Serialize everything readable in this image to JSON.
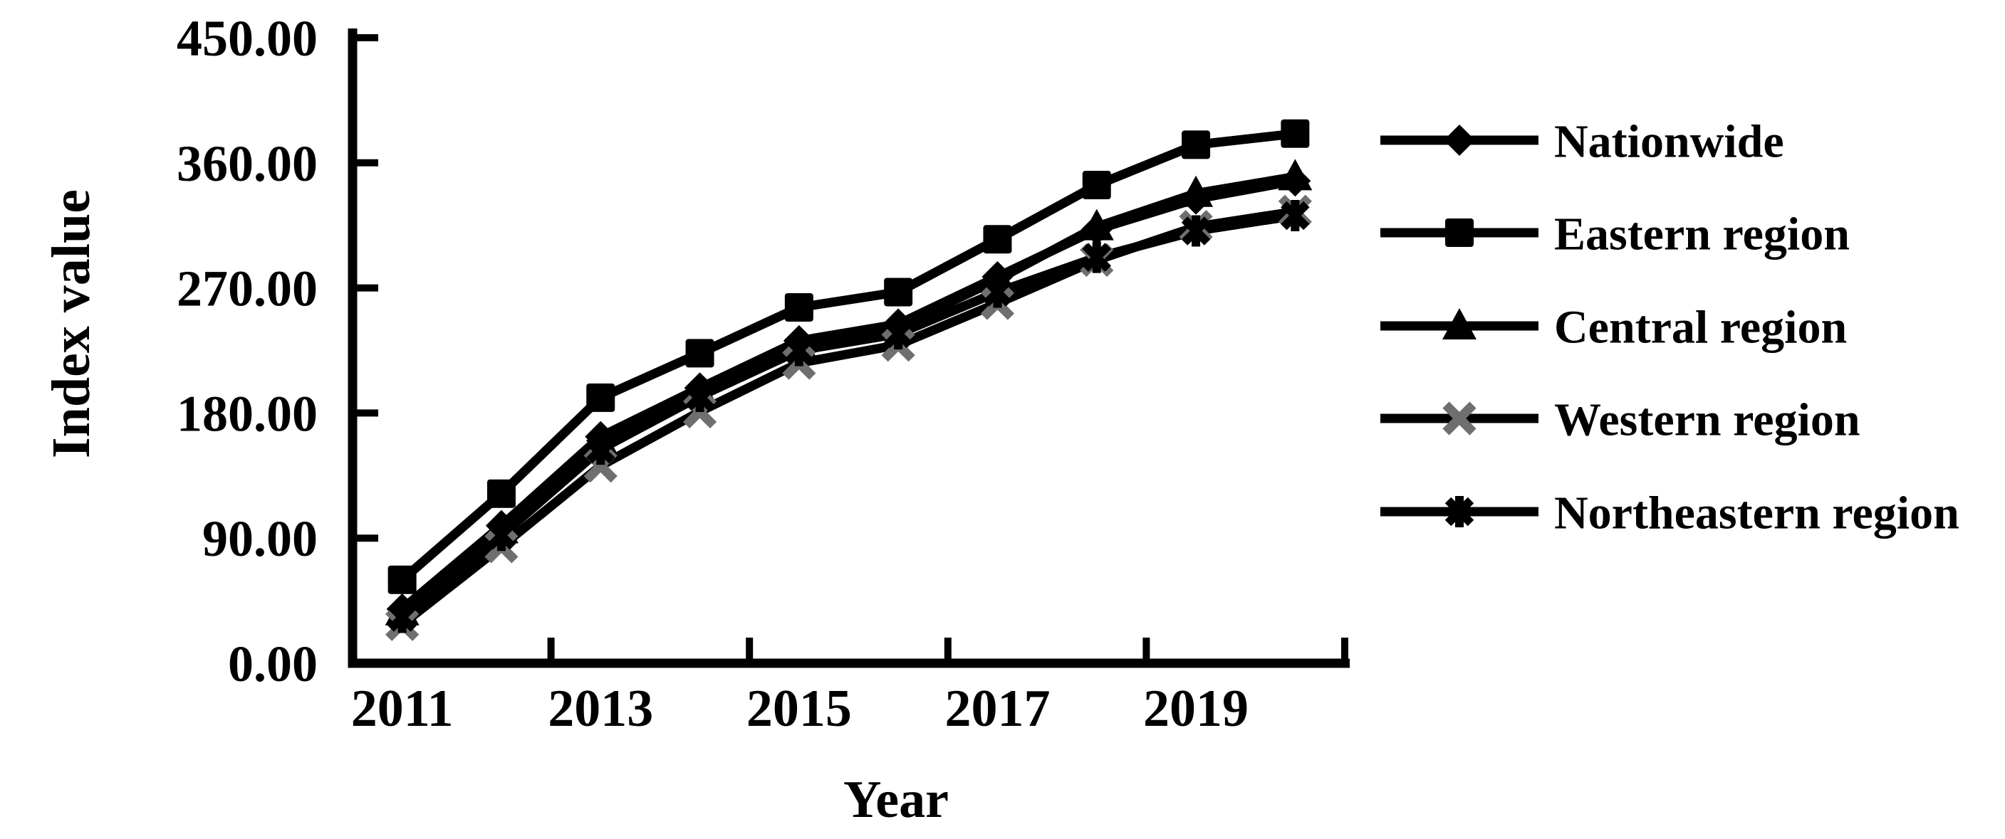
{
  "chart_data": {
    "type": "line",
    "title": "",
    "xlabel": "Year",
    "ylabel": "Index value",
    "categories": [
      "2011",
      "2012",
      "2013",
      "2014",
      "2015",
      "2016",
      "2017",
      "2018",
      "2019",
      "2020"
    ],
    "x_axis_tick_labels": [
      "2011",
      "2013",
      "2015",
      "2017",
      "2019"
    ],
    "y_axis_tick_labels": [
      "0.00",
      "90.00",
      "180.00",
      "270.00",
      "360.00",
      "450.00"
    ],
    "ylim": [
      0,
      450
    ],
    "y_tick_step": 90,
    "grid": false,
    "legend_position": "right",
    "colors": {
      "line": "#000000",
      "axis": "#000000",
      "text": "#000000",
      "western_marker_gray": "#6f6f6f",
      "background": "#ffffff"
    },
    "series": [
      {
        "name": "Nationwide",
        "marker": "diamond",
        "line_color": "#000000",
        "marker_color": "#000000",
        "values": [
          39,
          99,
          163,
          198,
          232,
          244,
          278,
          312,
          334,
          347
        ]
      },
      {
        "name": "Eastern region",
        "marker": "square",
        "line_color": "#000000",
        "marker_color": "#000000",
        "values": [
          60,
          122,
          191,
          223,
          256,
          267,
          305,
          344,
          373,
          381
        ]
      },
      {
        "name": "Central region",
        "marker": "triangle",
        "line_color": "#000000",
        "marker_color": "#000000",
        "values": [
          37,
          96,
          160,
          196,
          230,
          242,
          276,
          314,
          338,
          350
        ]
      },
      {
        "name": "Western region",
        "marker": "x",
        "line_color": "#000000",
        "marker_color": "#6f6f6f",
        "values": [
          28,
          84,
          142,
          181,
          216,
          229,
          259,
          290,
          314,
          325
        ]
      },
      {
        "name": "Northeastern region",
        "marker": "star",
        "line_color": "#000000",
        "marker_color": "#000000",
        "values": [
          33,
          92,
          154,
          192,
          225,
          237,
          267,
          292,
          311,
          322
        ]
      }
    ]
  }
}
